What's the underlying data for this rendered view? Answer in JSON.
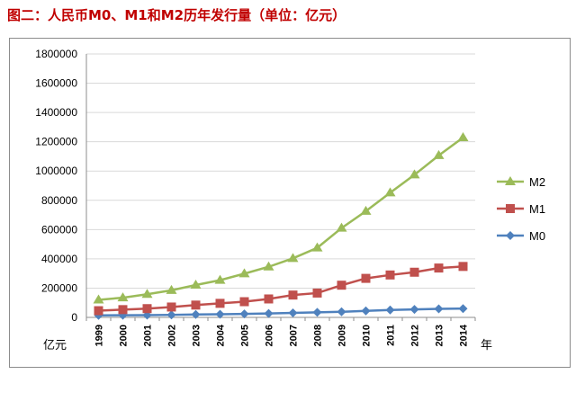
{
  "title": "图二：人民币M0、M1和M2历年发行量（单位：亿元）",
  "chart_data": {
    "type": "line",
    "categories": [
      "1999",
      "2000",
      "2001",
      "2002",
      "2003",
      "2004",
      "2005",
      "2006",
      "2007",
      "2008",
      "2009",
      "2010",
      "2011",
      "2012",
      "2013",
      "2014"
    ],
    "series": [
      {
        "name": "M2",
        "color": "#9bbb59",
        "marker": "triangle",
        "values": [
          119898,
          134610,
          158302,
          185007,
          221223,
          254107,
          298756,
          345604,
          403442,
          475167,
          610225,
          725852,
          851591,
          974149,
          1106525,
          1228375
        ]
      },
      {
        "name": "M1",
        "color": "#c0504d",
        "marker": "square",
        "values": [
          45837,
          53147,
          59872,
          70882,
          84119,
          95970,
          107279,
          126035,
          152560,
          166217,
          220002,
          266622,
          289848,
          308664,
          337291,
          348056
        ]
      },
      {
        "name": "M0",
        "color": "#4f81bd",
        "marker": "diamond",
        "values": [
          13456,
          14653,
          15689,
          17278,
          19746,
          21468,
          24032,
          27073,
          30375,
          34219,
          38246,
          44628,
          50748,
          54660,
          58574,
          60260
        ]
      }
    ],
    "ylim": [
      0,
      1800000
    ],
    "yticks": [
      "1800000",
      "1600000",
      "1400000",
      "1200000",
      "1000000",
      "800000",
      "600000",
      "400000",
      "200000",
      "0"
    ],
    "y_unit_label": "亿元",
    "x_unit_label": "年",
    "grid": "horizontal",
    "legend": "right"
  }
}
